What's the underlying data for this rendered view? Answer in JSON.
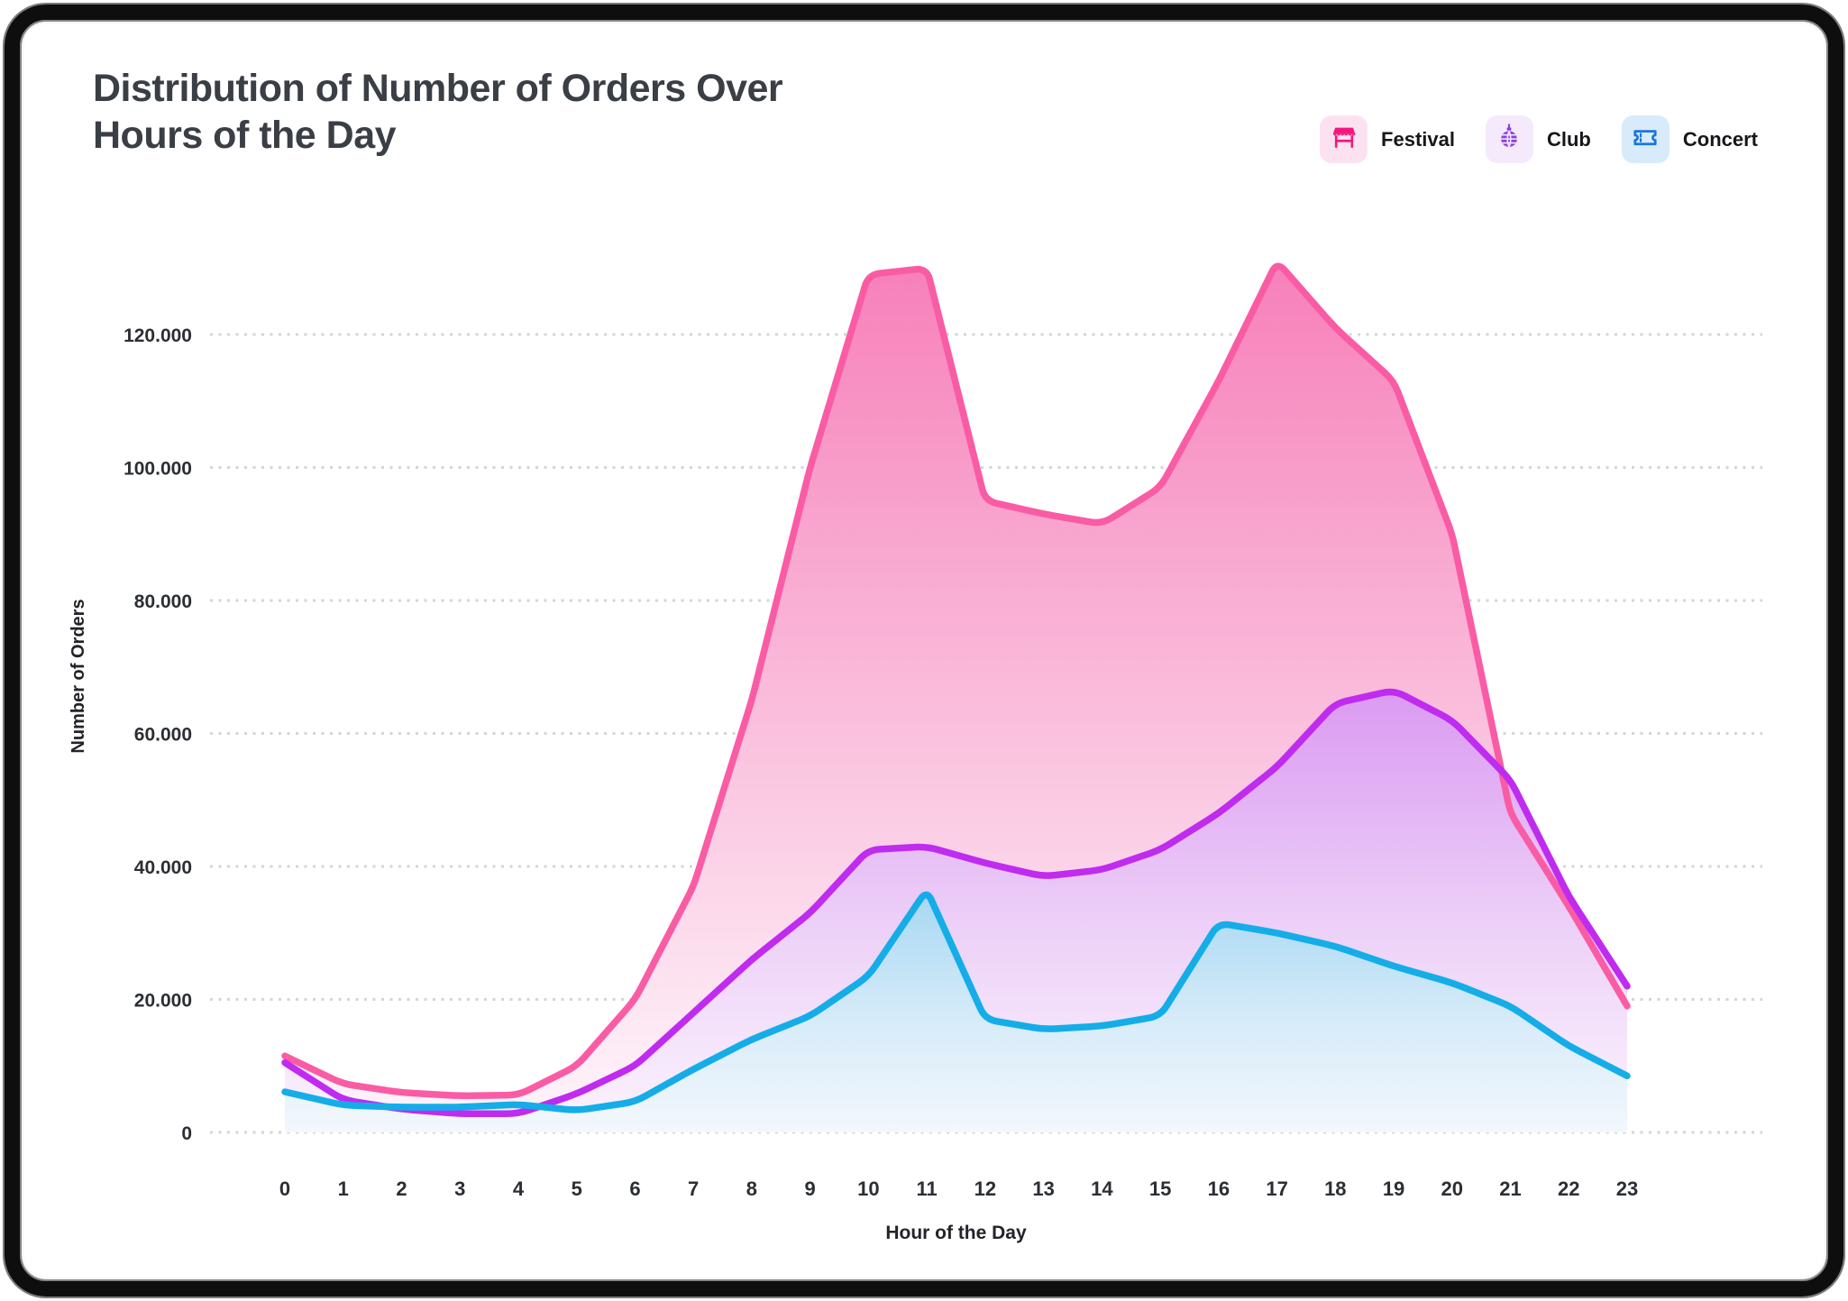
{
  "header": {
    "title_line1": "Distribution of Number of Orders Over",
    "title_line2": "Hours of the Day"
  },
  "legend": [
    {
      "label": "Festival",
      "icon": "festival-tent-icon",
      "icon_color": "#F2187D",
      "chip_bg": "#FCE2F0"
    },
    {
      "label": "Club",
      "icon": "disco-ball-icon",
      "icon_color": "#8A41DE",
      "chip_bg": "#F5EAFB"
    },
    {
      "label": "Concert",
      "icon": "ticket-icon",
      "icon_color": "#1B77DC",
      "chip_bg": "#D8EBFA"
    }
  ],
  "chart_data": {
    "type": "area",
    "title": "Distribution of Number of Orders Over Hours of the Day",
    "xlabel": "Hour of the Day",
    "ylabel": "Number of Orders",
    "grid": "horizontal-dotted",
    "legend_position": "top-right",
    "x": [
      0,
      1,
      2,
      3,
      4,
      5,
      6,
      7,
      8,
      9,
      10,
      11,
      12,
      13,
      14,
      15,
      16,
      17,
      18,
      19,
      20,
      21,
      22,
      23
    ],
    "x_tick_labels": [
      "0",
      "1",
      "2",
      "3",
      "4",
      "5",
      "6",
      "7",
      "8",
      "9",
      "10",
      "11",
      "12",
      "13",
      "14",
      "15",
      "16",
      "17",
      "18",
      "19",
      "20",
      "21",
      "22",
      "23"
    ],
    "ylim": [
      0,
      135000
    ],
    "y_ticks": [
      0,
      20000,
      40000,
      60000,
      80000,
      100000,
      120000
    ],
    "y_tick_labels": [
      "0",
      "20.000",
      "40.000",
      "60.000",
      "80.000",
      "100.000",
      "120.000"
    ],
    "series": [
      {
        "name": "Festival",
        "color": "#F95CA4",
        "fill_stops": [
          "#F780BA",
          "#FAC2DE",
          "#FEF4FA"
        ],
        "values": [
          11500,
          7300,
          6000,
          5500,
          5600,
          10000,
          20000,
          37000,
          65000,
          100000,
          129000,
          130000,
          95000,
          93000,
          91500,
          97000,
          113000,
          131000,
          121000,
          113000,
          90000,
          48000,
          34000,
          19000
        ]
      },
      {
        "name": "Club",
        "color": "#BF2BEF",
        "fill_stops": [
          "#DB9AF2",
          "#EDD2F8",
          "#FBF3FE"
        ],
        "values": [
          10500,
          4900,
          3500,
          2800,
          2800,
          5800,
          10000,
          18000,
          26000,
          33000,
          42500,
          43000,
          40500,
          38500,
          39500,
          42500,
          48000,
          55000,
          64500,
          66500,
          62000,
          53000,
          35500,
          22000
        ]
      },
      {
        "name": "Concert",
        "color": "#14ADE8",
        "fill_stops": [
          "#A8D8F3",
          "#D8ECF9",
          "#F2F8FD"
        ],
        "values": [
          6100,
          4100,
          3800,
          3800,
          4200,
          3300,
          4600,
          9500,
          14000,
          17500,
          23500,
          36500,
          17000,
          15500,
          16000,
          17500,
          31500,
          30000,
          28000,
          25000,
          22500,
          19000,
          13000,
          8500
        ]
      }
    ],
    "style": {
      "gridline_color": "#D5D5D7",
      "tick_label_color": "#2b2e33",
      "axis_title_color": "#222429",
      "title_color": "#3a3e45"
    }
  }
}
